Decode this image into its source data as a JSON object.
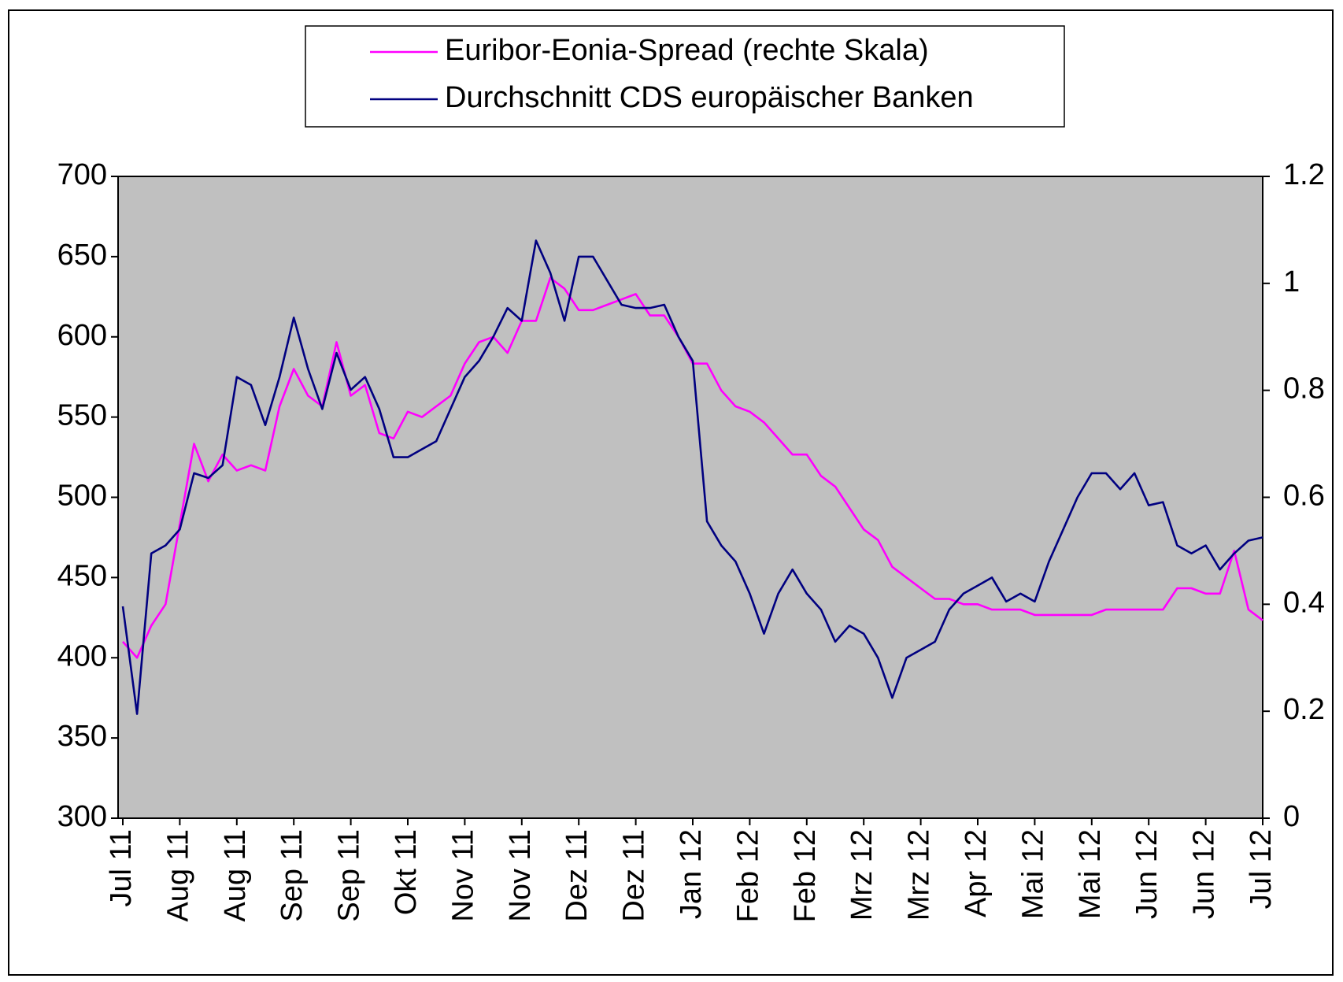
{
  "chart_data": {
    "type": "line",
    "categories": [
      "Jul 11",
      null,
      null,
      null,
      "Aug 11",
      null,
      null,
      null,
      "Aug 11",
      null,
      null,
      null,
      "Sep 11",
      null,
      null,
      null,
      "Sep 11",
      null,
      null,
      null,
      "Okt 11",
      null,
      null,
      null,
      "Nov 11",
      null,
      null,
      null,
      "Nov 11",
      null,
      null,
      null,
      "Dez 11",
      null,
      null,
      null,
      "Dez 11",
      null,
      null,
      null,
      "Jan 12",
      null,
      null,
      null,
      "Feb 12",
      null,
      null,
      null,
      "Feb 12",
      null,
      null,
      null,
      "Mrz 12",
      null,
      null,
      null,
      "Mrz 12",
      null,
      null,
      null,
      "Apr 12",
      null,
      null,
      null,
      "Mai 12",
      null,
      null,
      null,
      "Mai 12",
      null,
      null,
      null,
      "Jun 12",
      null,
      null,
      null,
      "Jun 12",
      null,
      null,
      null,
      "Jul 12"
    ],
    "series": [
      {
        "name": "Euribor-Eonia-Spread (rechte Skala)",
        "color": "#ff00ff",
        "axis": "y2",
        "values": [
          0.33,
          0.3,
          0.36,
          0.4,
          0.55,
          0.7,
          0.63,
          0.68,
          0.65,
          0.66,
          0.65,
          0.77,
          0.84,
          0.79,
          0.77,
          0.89,
          0.79,
          0.81,
          0.72,
          0.71,
          0.76,
          0.75,
          0.77,
          0.79,
          0.85,
          0.89,
          0.9,
          0.87,
          0.93,
          0.93,
          1.01,
          0.99,
          0.95,
          0.95,
          0.96,
          0.97,
          0.98,
          0.94,
          0.94,
          0.9,
          0.85,
          0.85,
          0.8,
          0.77,
          0.76,
          0.74,
          0.71,
          0.68,
          0.68,
          0.64,
          0.62,
          0.58,
          0.54,
          0.52,
          0.47,
          0.45,
          0.43,
          0.41,
          0.41,
          0.4,
          0.4,
          0.39,
          0.39,
          0.39,
          0.38,
          0.38,
          0.38,
          0.38,
          0.38,
          0.39,
          0.39,
          0.39,
          0.39,
          0.39,
          0.43,
          0.43,
          0.42,
          0.42,
          0.5,
          0.39,
          0.37
        ]
      },
      {
        "name": "Durchschnitt CDS europäischer Banken",
        "color": "#000080",
        "values": [
          432,
          365,
          465,
          470,
          480,
          515,
          512,
          520,
          575,
          570,
          545,
          575,
          612,
          580,
          555,
          590,
          567,
          575,
          555,
          525,
          525,
          530,
          535,
          555,
          575,
          585,
          600,
          618,
          610,
          660,
          640,
          610,
          650,
          650,
          635,
          620,
          618,
          618,
          620,
          600,
          585,
          485,
          470,
          460,
          440,
          415,
          440,
          455,
          440,
          430,
          410,
          420,
          415,
          400,
          375,
          400,
          405,
          410,
          430,
          440,
          445,
          450,
          435,
          440,
          435,
          460,
          480,
          500,
          515,
          515,
          505,
          515,
          495,
          497,
          470,
          465,
          470,
          455,
          465,
          473,
          475
        ]
      }
    ],
    "ylim": [
      300,
      700
    ],
    "yticks": [
      300,
      350,
      400,
      450,
      500,
      550,
      600,
      650,
      700
    ],
    "y2lim": [
      0,
      1.2
    ],
    "y2ticks": [
      0,
      0.2,
      0.4,
      0.6,
      0.8,
      1,
      1.2
    ],
    "legend": "top",
    "background": "#c0c0c0"
  }
}
